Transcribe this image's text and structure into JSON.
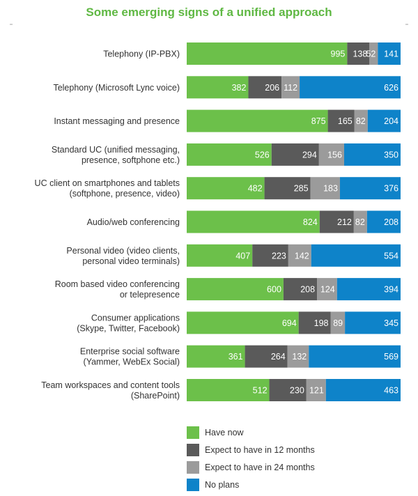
{
  "chart_data": {
    "type": "bar",
    "orientation": "horizontal",
    "stacked": true,
    "title": "Some emerging signs of a unified approach",
    "categories": [
      [
        "Telephony (IP-PBX)"
      ],
      [
        "Telephony (Microsoft Lync voice)"
      ],
      [
        "Instant messaging and presence"
      ],
      [
        "Standard UC (unified messaging,",
        "presence, softphone etc.)"
      ],
      [
        "UC client on smartphones and tablets",
        "(softphone, presence, video)"
      ],
      [
        "Audio/web conferencing"
      ],
      [
        "Personal video (video clients,",
        "personal video terminals)"
      ],
      [
        "Room based video conferencing",
        "or telepresence"
      ],
      [
        "Consumer applications",
        "(Skype, Twitter, Facebook)"
      ],
      [
        "Enterprise social software",
        "(Yammer, WebEx Social)"
      ],
      [
        "Team workspaces and content tools",
        "(SharePoint)"
      ]
    ],
    "series": [
      {
        "name": "Have now",
        "color": "#6cc04a",
        "values": [
          995,
          382,
          875,
          526,
          482,
          824,
          407,
          600,
          694,
          361,
          512
        ]
      },
      {
        "name": "Expect to have in 12 months",
        "color": "#5a5a5a",
        "values": [
          138,
          206,
          165,
          294,
          285,
          212,
          223,
          208,
          198,
          264,
          230
        ]
      },
      {
        "name": "Expect to have in 24 months",
        "color": "#9b9b9b",
        "values": [
          52,
          112,
          82,
          156,
          183,
          82,
          142,
          124,
          89,
          132,
          121
        ]
      },
      {
        "name": "No plans",
        "color": "#0e83c9",
        "values": [
          141,
          626,
          204,
          350,
          376,
          208,
          554,
          394,
          345,
          569,
          463
        ]
      }
    ],
    "legend_position": "bottom"
  }
}
